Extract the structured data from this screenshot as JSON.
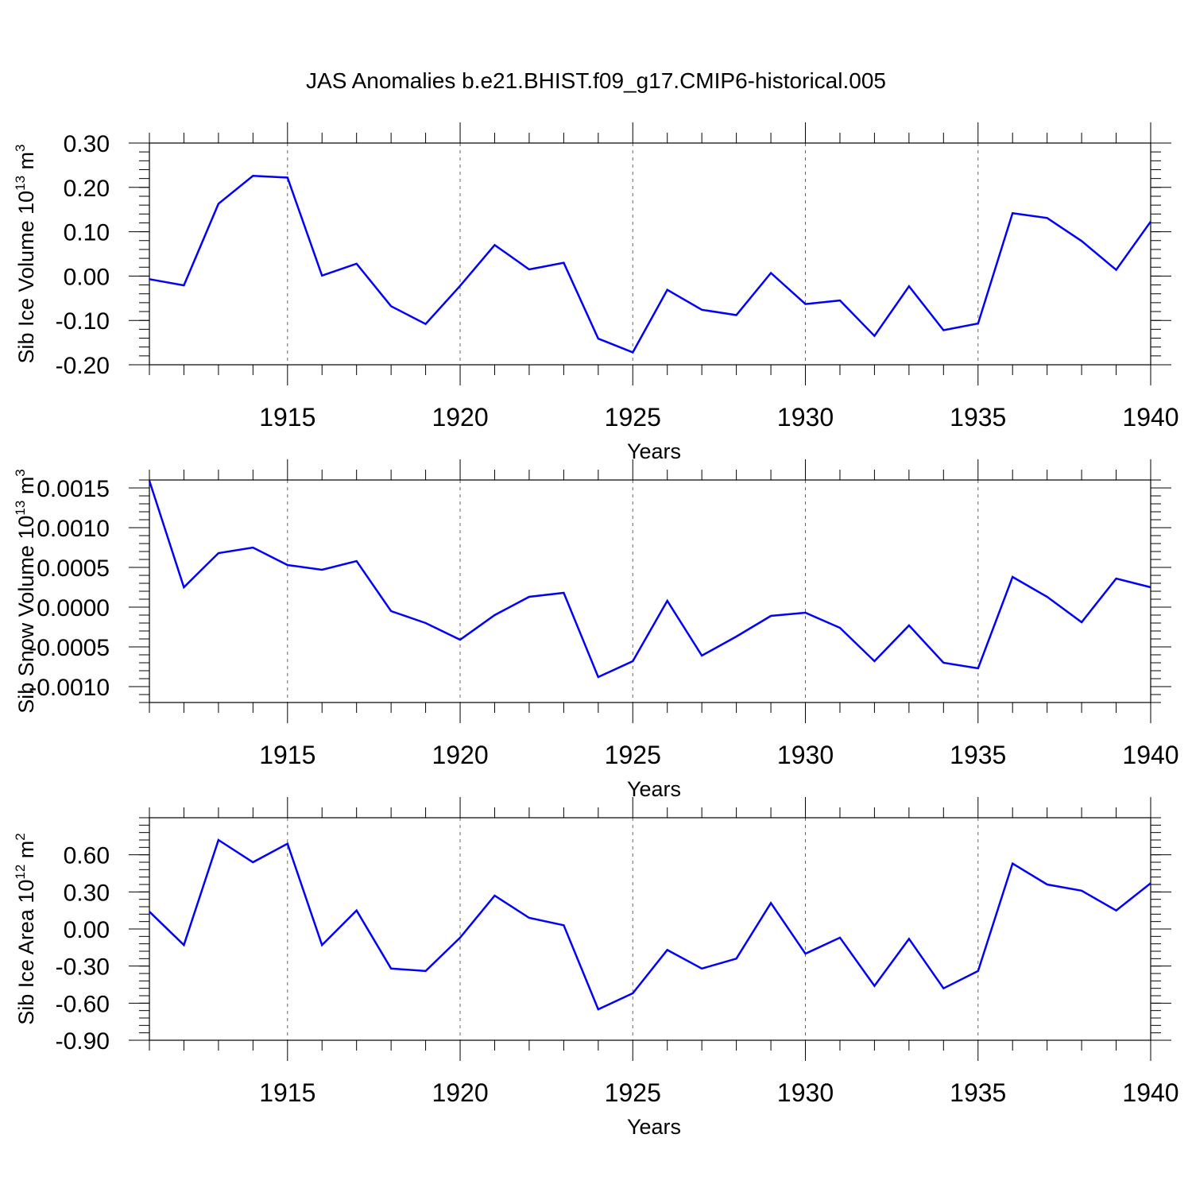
{
  "figure": {
    "title": "JAS Anomalies b.e21.BHIST.f09_g17.CMIP6-historical.005"
  },
  "chart_data": [
    {
      "type": "line",
      "title": "",
      "xlabel": "Years",
      "ylabel": "Sib Ice Volume 10",
      "ylabel_exp": "13",
      "ylabel_unit": " m",
      "ylabel_unit_exp": "3",
      "xlim": [
        1911,
        1940
      ],
      "ylim": [
        -0.2,
        0.3
      ],
      "x_ticks": [
        1915,
        1920,
        1925,
        1930,
        1935,
        1940
      ],
      "y_ticks": [
        -0.2,
        -0.1,
        0.0,
        0.1,
        0.2,
        0.3
      ],
      "y_tick_labels": [
        "-0.20",
        "-0.10",
        "0.00",
        "0.10",
        "0.20",
        "0.30"
      ],
      "y_minor_step": 0.02,
      "grid": "dashed vertical lines at major x ticks",
      "line_color": "#0000ff",
      "x": [
        1911,
        1912,
        1913,
        1914,
        1915,
        1916,
        1917,
        1918,
        1919,
        1920,
        1921,
        1922,
        1923,
        1924,
        1925,
        1926,
        1927,
        1928,
        1929,
        1930,
        1931,
        1932,
        1933,
        1934,
        1935,
        1936,
        1937,
        1938,
        1939,
        1940
      ],
      "values": [
        -0.007,
        -0.021,
        0.163,
        0.226,
        0.222,
        0.001,
        0.028,
        -0.068,
        -0.108,
        -0.022,
        0.07,
        0.015,
        0.03,
        -0.141,
        -0.172,
        -0.031,
        -0.076,
        -0.088,
        0.007,
        -0.063,
        -0.055,
        -0.135,
        -0.023,
        -0.122,
        -0.107,
        0.142,
        0.131,
        0.079,
        0.014,
        0.123
      ]
    },
    {
      "type": "line",
      "title": "",
      "xlabel": "Years",
      "ylabel": "Sib Snow Volume 10",
      "ylabel_exp": "13",
      "ylabel_unit": " m",
      "ylabel_unit_exp": "3",
      "xlim": [
        1911,
        1940
      ],
      "ylim": [
        -0.0012,
        0.0016
      ],
      "x_ticks": [
        1915,
        1920,
        1925,
        1930,
        1935,
        1940
      ],
      "y_ticks": [
        -0.001,
        -0.0005,
        0.0,
        0.0005,
        0.001,
        0.0015
      ],
      "y_tick_labels": [
        "-0.0010",
        "-0.0005",
        "0.0000",
        "0.0005",
        "0.0010",
        "0.0015"
      ],
      "y_minor_step": 0.0001,
      "grid": "dashed vertical lines at major x ticks",
      "line_color": "#0000ff",
      "x": [
        1911,
        1912,
        1913,
        1914,
        1915,
        1916,
        1917,
        1918,
        1919,
        1920,
        1921,
        1922,
        1923,
        1924,
        1925,
        1926,
        1927,
        1928,
        1929,
        1930,
        1931,
        1932,
        1933,
        1934,
        1935,
        1936,
        1937,
        1938,
        1939,
        1940
      ],
      "values": [
        0.00159,
        0.00025,
        0.00068,
        0.00075,
        0.00053,
        0.00047,
        0.00058,
        -5e-05,
        -0.0002,
        -0.00041,
        -0.0001,
        0.00013,
        0.00018,
        -0.00088,
        -0.00068,
        8e-05,
        -0.00061,
        -0.00037,
        -0.00011,
        -7e-05,
        -0.00026,
        -0.00068,
        -0.00023,
        -0.0007,
        -0.00077,
        0.00038,
        0.00013,
        -0.00019,
        0.00036,
        0.00025
      ]
    },
    {
      "type": "line",
      "title": "",
      "xlabel": "Years",
      "ylabel": "Sib Ice Area 10",
      "ylabel_exp": "12",
      "ylabel_unit": " m",
      "ylabel_unit_exp": "2",
      "xlim": [
        1911,
        1940
      ],
      "ylim": [
        -0.9,
        0.9
      ],
      "x_ticks": [
        1915,
        1920,
        1925,
        1930,
        1935,
        1940
      ],
      "y_ticks": [
        -0.9,
        -0.6,
        -0.3,
        0.0,
        0.3,
        0.6
      ],
      "y_tick_labels": [
        "-0.90",
        "-0.60",
        "-0.30",
        "0.00",
        "0.30",
        "0.60"
      ],
      "y_minor_step": 0.06,
      "grid": "dashed vertical lines at major x ticks",
      "line_color": "#0000ff",
      "x": [
        1911,
        1912,
        1913,
        1914,
        1915,
        1916,
        1917,
        1918,
        1919,
        1920,
        1921,
        1922,
        1923,
        1924,
        1925,
        1926,
        1927,
        1928,
        1929,
        1930,
        1931,
        1932,
        1933,
        1934,
        1935,
        1936,
        1937,
        1938,
        1939,
        1940
      ],
      "values": [
        0.14,
        -0.13,
        0.72,
        0.54,
        0.69,
        -0.13,
        0.15,
        -0.32,
        -0.34,
        -0.07,
        0.27,
        0.09,
        0.03,
        -0.65,
        -0.52,
        -0.17,
        -0.32,
        -0.24,
        0.21,
        -0.2,
        -0.07,
        -0.46,
        -0.08,
        -0.48,
        -0.34,
        0.53,
        0.36,
        0.31,
        0.15,
        0.37
      ]
    }
  ]
}
